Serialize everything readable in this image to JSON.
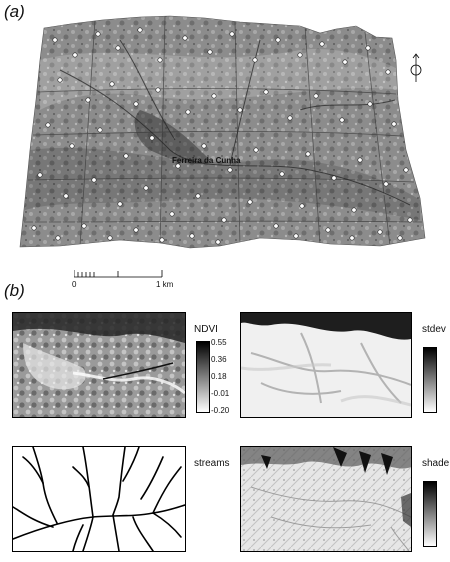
{
  "figure": {
    "panel_a_label": "(a)",
    "panel_b_label": "(b)"
  },
  "terrain": {
    "place_name": "Ferreira da Cunha",
    "scale_bar": {
      "start_label": "0",
      "end_label": "1 km"
    }
  },
  "maps": {
    "ndvi": {
      "title": "NDVI",
      "ticks": [
        "0.55",
        "0.36",
        "0.18",
        "-0.01",
        "-0.20"
      ]
    },
    "stdev": {
      "title": "stdev"
    },
    "streams": {
      "title": "streams"
    },
    "shade": {
      "title": "shade"
    }
  },
  "colors": {
    "black": "#000000",
    "terrain_gray": "#8a8a8a",
    "light_gray": "#e8e8e8"
  }
}
